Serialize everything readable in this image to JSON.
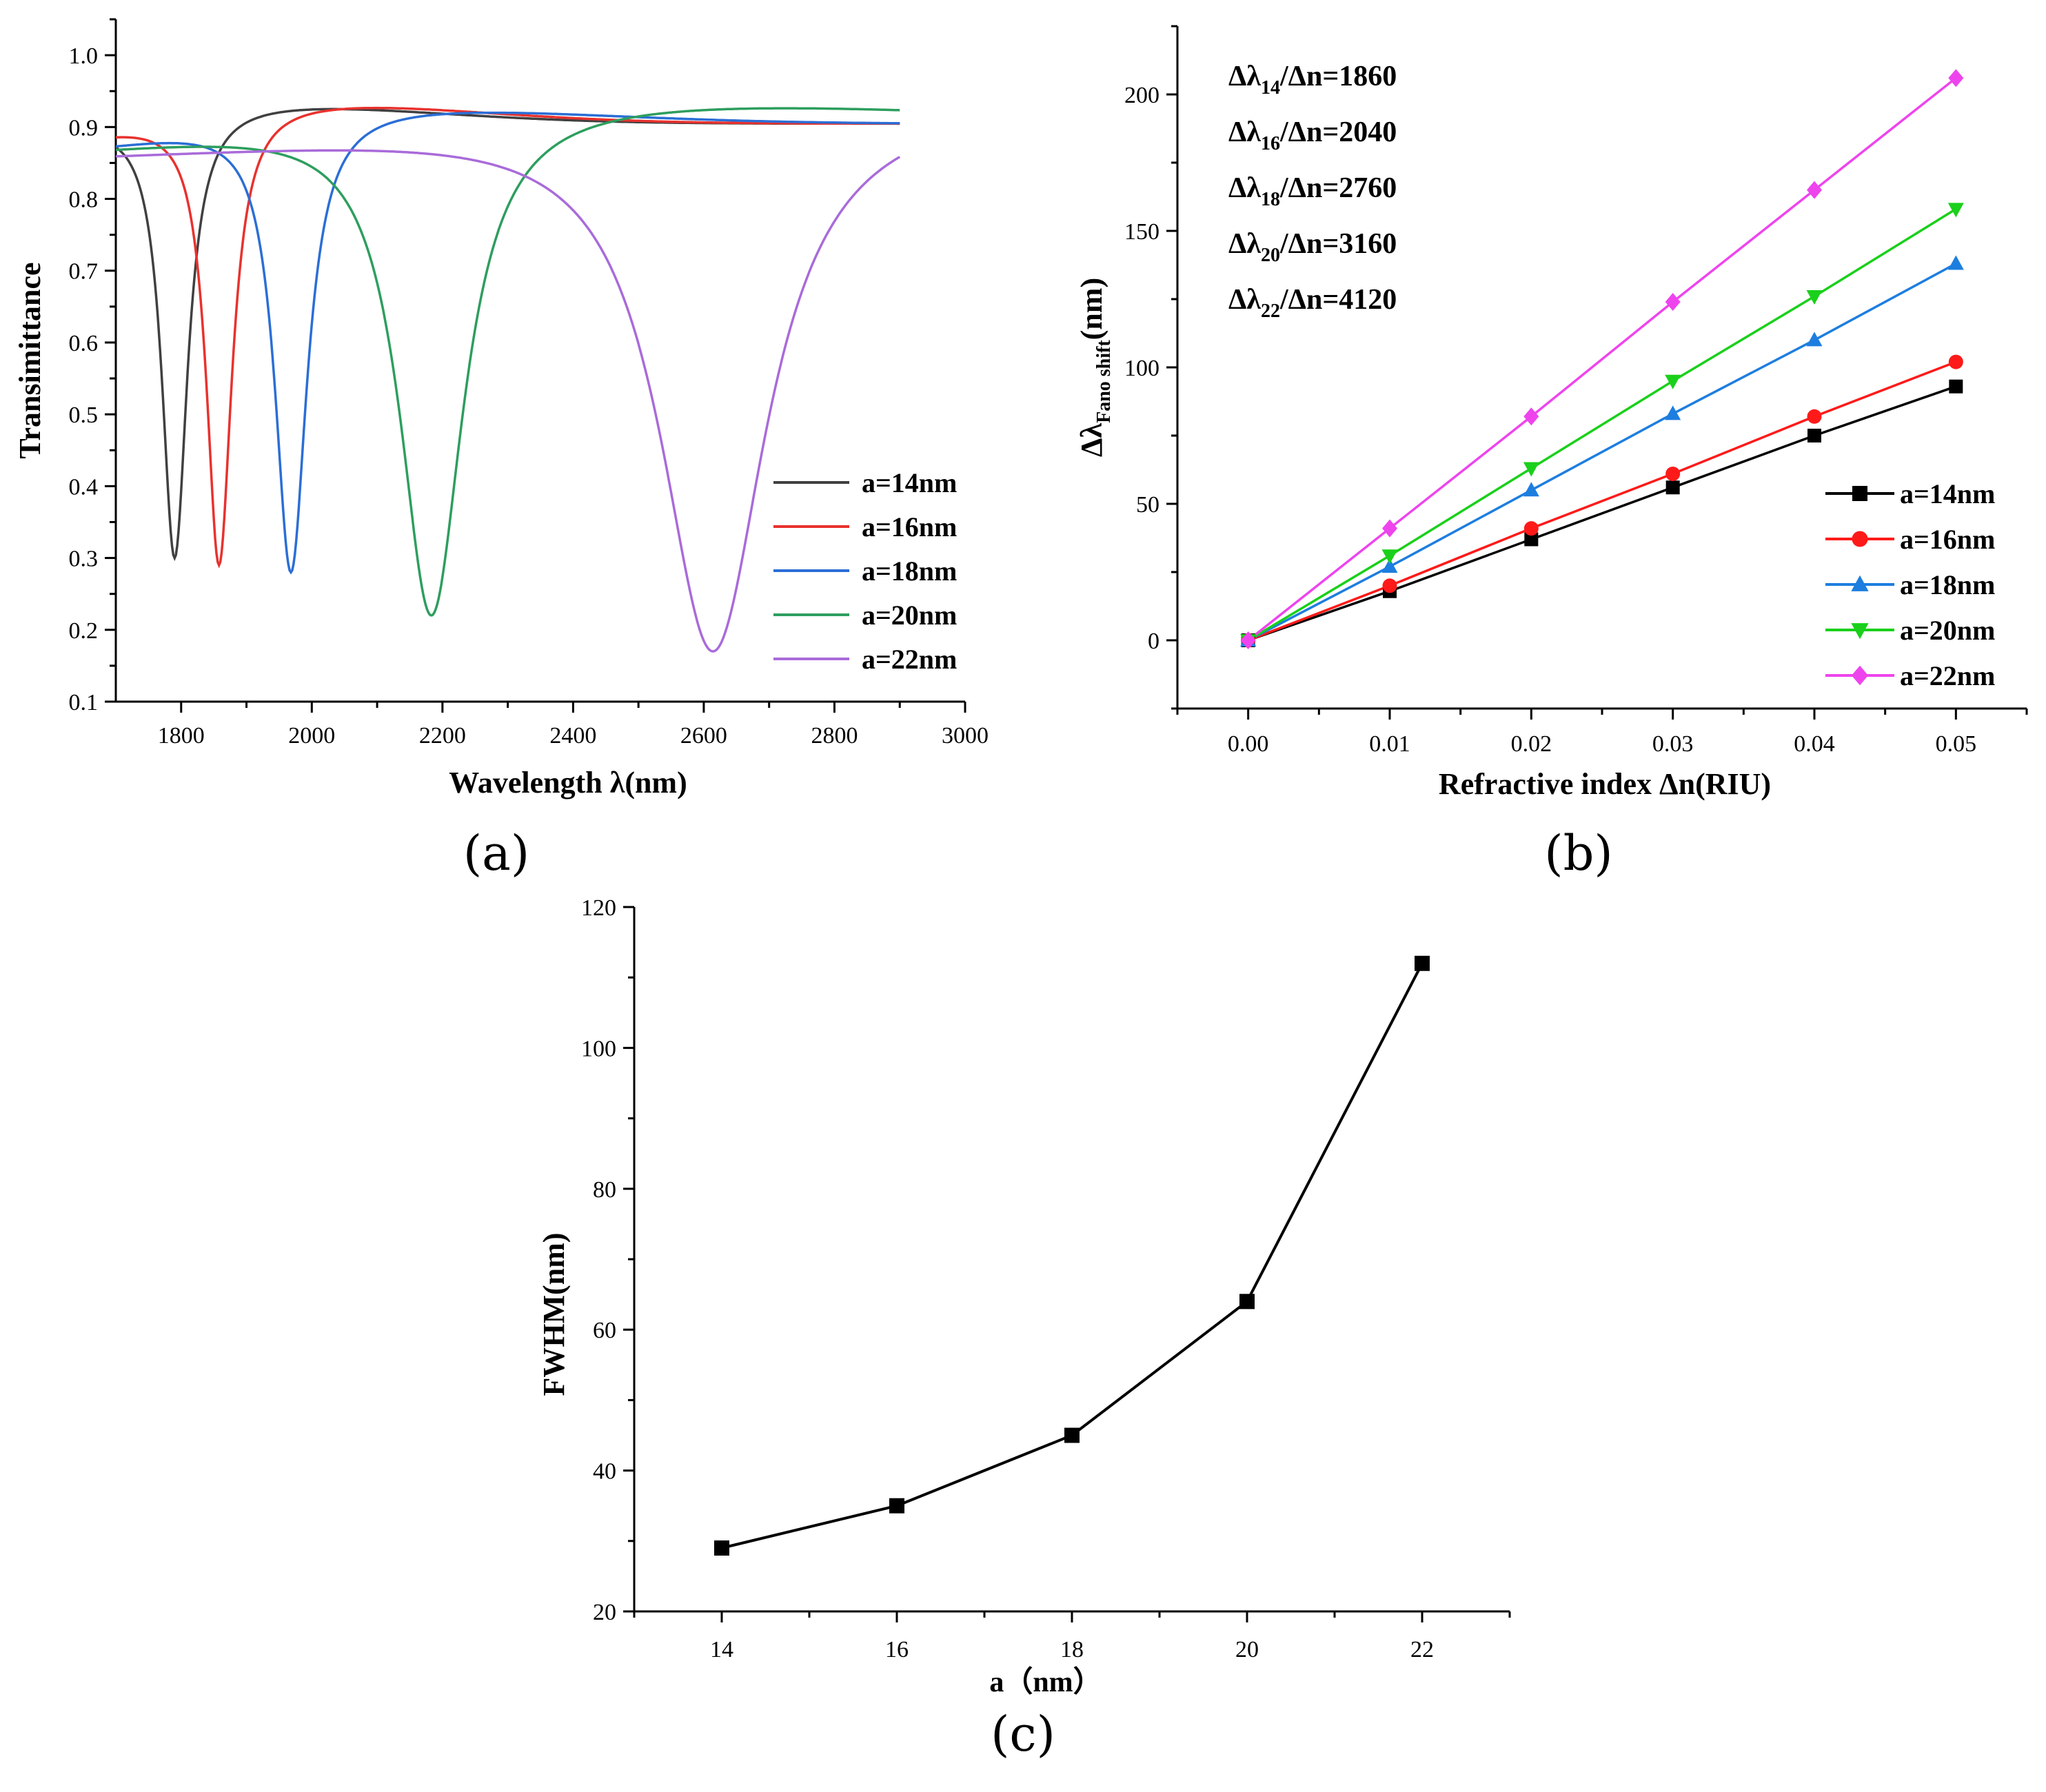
{
  "figure_labels": {
    "a": "(a)",
    "b": "(b)",
    "c": "(c)"
  },
  "chart_data": [
    {
      "id": "a",
      "type": "line",
      "title": "",
      "xlabel": "Wavelength λ(nm)",
      "ylabel": "Transimittance",
      "xlim": [
        1700,
        3000
      ],
      "ylim": [
        0.1,
        1.05
      ],
      "xticks": [
        "1800",
        "2000",
        "2200",
        "2400",
        "2600",
        "2800",
        "3000"
      ],
      "yticks": [
        "0.1",
        "0.2",
        "0.3",
        "0.4",
        "0.5",
        "0.6",
        "0.7",
        "0.8",
        "0.9",
        "1.0"
      ],
      "legend_position": "lower-right",
      "series": [
        {
          "name": "a=14nm",
          "color": "#404040",
          "dip_x": 1790,
          "dip_y": 0.3,
          "baseline": 0.905,
          "peak": 0.935,
          "width": 24
        },
        {
          "name": "a=16nm",
          "color": "#e8322d",
          "dip_x": 1858,
          "dip_y": 0.29,
          "baseline": 0.905,
          "peak": 0.937,
          "width": 24
        },
        {
          "name": "a=18nm",
          "color": "#2b6fd6",
          "dip_x": 1968,
          "dip_y": 0.28,
          "baseline": 0.905,
          "peak": 0.93,
          "width": 30
        },
        {
          "name": "a=20nm",
          "color": "#2e9e5e",
          "dip_x": 2183,
          "dip_y": 0.22,
          "baseline": 0.905,
          "peak": 0.94,
          "width": 60
        },
        {
          "name": "a=22nm",
          "color": "#a86bd9",
          "dip_x": 2614,
          "dip_y": 0.17,
          "baseline": 0.905,
          "peak": 0.943,
          "width": 100
        }
      ]
    },
    {
      "id": "b",
      "type": "line",
      "title": "",
      "xlabel": "Refractive index Δn(RIU)",
      "ylabel_main": "Δλ",
      "ylabel_sub": "Fano shift",
      "ylabel_tail": "(nm)",
      "xlim": [
        -0.005,
        0.055
      ],
      "ylim": [
        -25,
        225
      ],
      "xticks": [
        "0.00",
        "0.01",
        "0.02",
        "0.03",
        "0.04",
        "0.05"
      ],
      "yticks": [
        "0",
        "50",
        "100",
        "150",
        "200"
      ],
      "legend_position": "lower-right",
      "annotations": [
        {
          "pre": "Δλ",
          "sub": "14",
          "post": "/Δn=1860"
        },
        {
          "pre": "Δλ",
          "sub": "16",
          "post": "/Δn=2040"
        },
        {
          "pre": "Δλ",
          "sub": "18",
          "post": "/Δn=2760"
        },
        {
          "pre": "Δλ",
          "sub": "20",
          "post": "/Δn=3160"
        },
        {
          "pre": "Δλ",
          "sub": "22",
          "post": "/Δn=4120"
        }
      ],
      "x": [
        0,
        0.01,
        0.02,
        0.03,
        0.04,
        0.05
      ],
      "series": [
        {
          "name": "a=14nm",
          "color": "#000000",
          "marker": "square",
          "values": [
            0,
            18,
            37,
            56,
            75,
            93
          ]
        },
        {
          "name": "a=16nm",
          "color": "#ff1a1a",
          "marker": "circle",
          "values": [
            0,
            20,
            41,
            61,
            82,
            102
          ]
        },
        {
          "name": "a=18nm",
          "color": "#1e7ee0",
          "marker": "triangle-up",
          "values": [
            0,
            27,
            55,
            83,
            110,
            138
          ]
        },
        {
          "name": "a=20nm",
          "color": "#1ad01a",
          "marker": "triangle-down",
          "values": [
            0,
            31,
            63,
            95,
            126,
            158
          ]
        },
        {
          "name": "a=22nm",
          "color": "#ee44ee",
          "marker": "diamond",
          "values": [
            0,
            41,
            82,
            124,
            165,
            206
          ]
        }
      ]
    },
    {
      "id": "c",
      "type": "line",
      "title": "",
      "xlabel": "a（nm）",
      "ylabel": "FWHM(nm)",
      "xlim": [
        13,
        23
      ],
      "ylim": [
        20,
        120
      ],
      "xticks": [
        "14",
        "16",
        "18",
        "20",
        "22"
      ],
      "yticks": [
        "20",
        "40",
        "60",
        "80",
        "100",
        "120"
      ],
      "x": [
        14,
        16,
        18,
        20,
        22
      ],
      "series": [
        {
          "name": "FWHM",
          "color": "#000000",
          "marker": "square",
          "values": [
            29,
            35,
            45,
            64,
            112
          ]
        }
      ]
    }
  ]
}
